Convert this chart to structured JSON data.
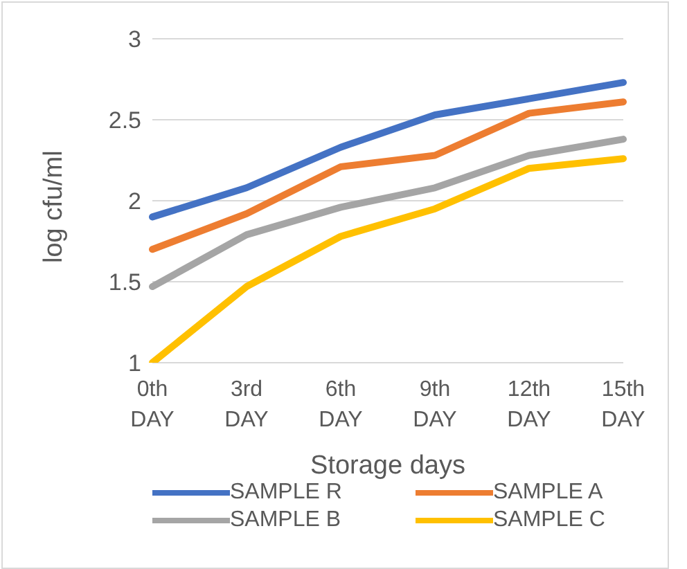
{
  "chart_data": {
    "type": "line",
    "xlabel": "Storage days",
    "ylabel": "log cfu/ml",
    "categories": [
      "0th DAY",
      "3rd DAY",
      "6th DAY",
      "9th DAY",
      "12th DAY",
      "15th DAY"
    ],
    "series": [
      {
        "name": "SAMPLE R",
        "color": "#4472c4",
        "values": [
          1.9,
          2.08,
          2.33,
          2.53,
          2.63,
          2.73
        ]
      },
      {
        "name": "SAMPLE A",
        "color": "#ed7d31",
        "values": [
          1.7,
          1.92,
          2.21,
          2.28,
          2.54,
          2.61
        ]
      },
      {
        "name": "SAMPLE B",
        "color": "#a5a5a5",
        "values": [
          1.47,
          1.79,
          1.96,
          2.08,
          2.28,
          2.38
        ]
      },
      {
        "name": "SAMPLE C",
        "color": "#ffc000",
        "values": [
          1.0,
          1.47,
          1.78,
          1.95,
          2.2,
          2.26
        ]
      }
    ],
    "ylim": [
      1,
      3
    ],
    "yticks": [
      1,
      1.5,
      2,
      2.5,
      3
    ],
    "grid": "y",
    "legend": "bottom",
    "marker": "none",
    "line_style": "solid"
  }
}
